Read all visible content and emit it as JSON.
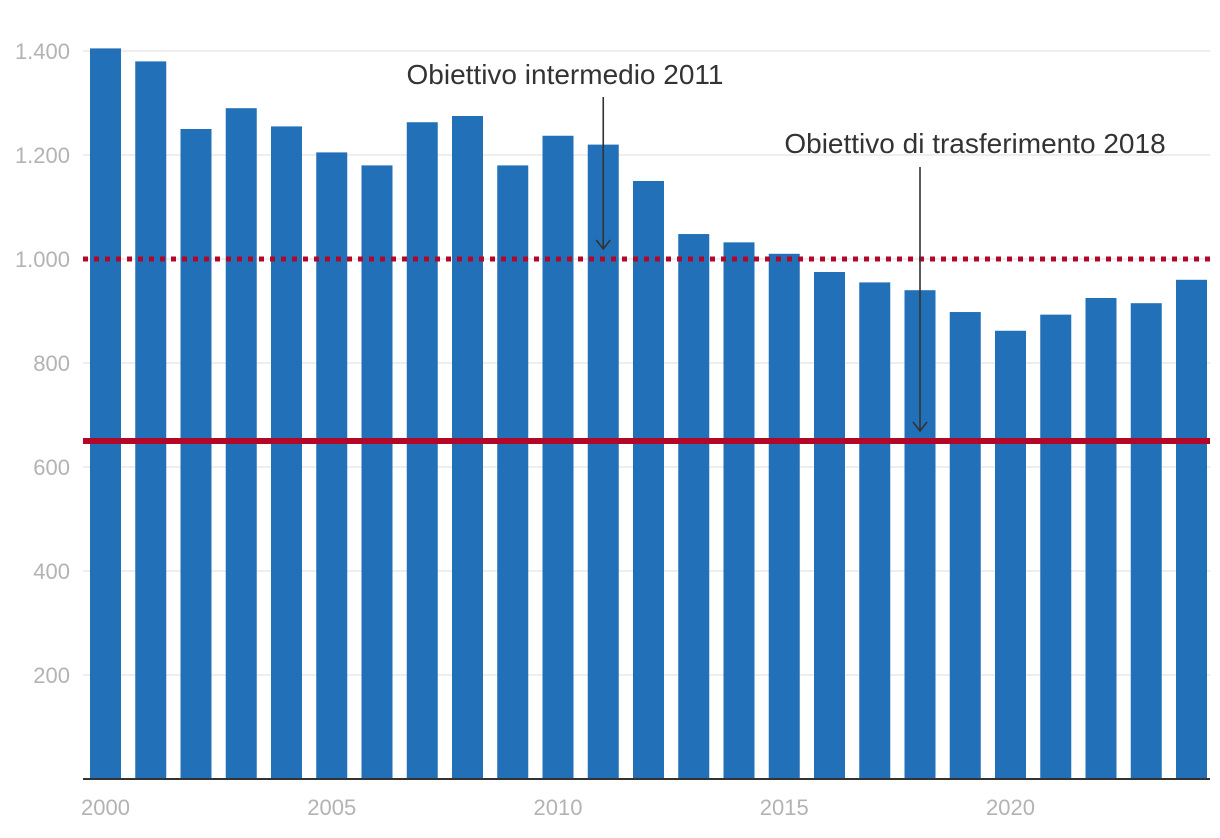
{
  "chart_data": {
    "type": "bar",
    "title": "",
    "xlabel": "",
    "ylabel": "",
    "x": [
      2000,
      2001,
      2002,
      2003,
      2004,
      2005,
      2006,
      2007,
      2008,
      2009,
      2010,
      2011,
      2012,
      2013,
      2014,
      2015,
      2016,
      2017,
      2018,
      2019,
      2020,
      2021,
      2022,
      2023,
      2024
    ],
    "values": [
      1405,
      1380,
      1250,
      1290,
      1255,
      1205,
      1180,
      1263,
      1275,
      1180,
      1237,
      1220,
      1150,
      1048,
      1032,
      1010,
      975,
      955,
      940,
      898,
      862,
      893,
      925,
      915,
      960
    ],
    "ylim": [
      0,
      1400
    ],
    "yticks": [
      200,
      400,
      600,
      800,
      1000,
      1200,
      1400
    ],
    "ytick_labels": [
      "200",
      "400",
      "600",
      "800",
      "1.000",
      "1.200",
      "1.400"
    ],
    "xticks": [
      2000,
      2005,
      2010,
      2015,
      2020
    ],
    "xtick_labels": [
      "2000",
      "2005",
      "2010",
      "2015",
      "2020"
    ],
    "grid": true,
    "bar_color": "#2170b8",
    "reference_lines": [
      {
        "value": 1000,
        "style": "dotted",
        "color": "#b3072a"
      },
      {
        "value": 650,
        "style": "solid",
        "color": "#b3072a"
      }
    ],
    "annotations": [
      {
        "text": "Obiettivo intermedio 2011",
        "x": 2011,
        "y": 1000
      },
      {
        "text": "Obiettivo di trasferimento 2018",
        "x": 2018,
        "y": 650
      }
    ]
  }
}
